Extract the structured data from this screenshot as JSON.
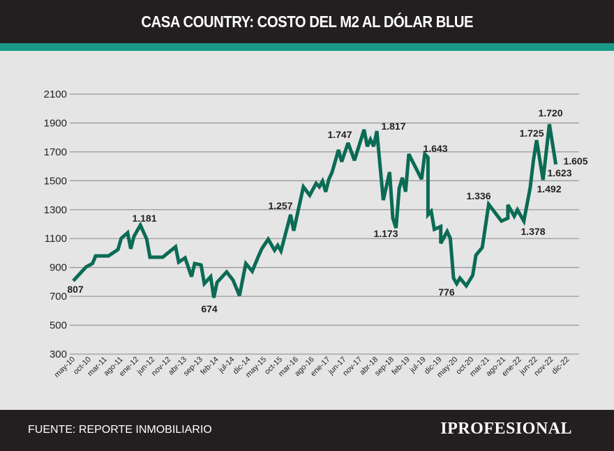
{
  "header": {
    "title": "CASA COUNTRY: COSTO DEL M2 AL DÓLAR BLUE"
  },
  "footer": {
    "source": "FUENTE: REPORTE INMOBILIARIO",
    "logo": "IPROFESIONAL"
  },
  "colors": {
    "line": "#0b6b55",
    "stripe": "#1a9a86",
    "bars": "#231f20",
    "background": "#e5e5e5"
  },
  "chart_data": {
    "type": "line",
    "title": "CASA COUNTRY: COSTO DEL M2 AL DÓLAR BLUE",
    "xlabel": "",
    "ylabel": "",
    "ylim": [
      300,
      2100
    ],
    "yticks": [
      "2100",
      "1900",
      "1700",
      "1500",
      "1300",
      "1100",
      "900",
      "700",
      "500",
      "300"
    ],
    "ytick_values": [
      2100,
      1900,
      1700,
      1500,
      1300,
      1100,
      900,
      700,
      500,
      300
    ],
    "xticks": [
      "may-10",
      "oct-10",
      "mar-11",
      "ago-11",
      "ene-12",
      "jun-12",
      "nov-12",
      "abr-13",
      "sep-13",
      "feb-14",
      "jul-14",
      "dic-14",
      "may-15",
      "oct-15",
      "mar-16",
      "ago-16",
      "ene-17",
      "jun-17",
      "nov-17",
      "abr-18",
      "sep-18",
      "feb-19",
      "jul-19",
      "dic-19",
      "may-20",
      "oct-20",
      "mar-21",
      "ago-21",
      "ene-22",
      "jun-22",
      "nov-22",
      "dic-22"
    ],
    "grid": true,
    "series": [
      {
        "points": [
          [
            "2010-05",
            807
          ],
          [
            "2010-09",
            903
          ],
          [
            "2010-11",
            927
          ],
          [
            "2010-12",
            980
          ],
          [
            "2011-04",
            980
          ],
          [
            "2011-07",
            1024
          ],
          [
            "2011-08",
            1101
          ],
          [
            "2011-10",
            1140
          ],
          [
            "2011-11",
            1029
          ],
          [
            "2011-12",
            1115
          ],
          [
            "2012-02",
            1193
          ],
          [
            "2012-04",
            1096
          ],
          [
            "2012-05",
            971
          ],
          [
            "2012-09",
            971
          ],
          [
            "2013-01",
            1043
          ],
          [
            "2013-02",
            937
          ],
          [
            "2013-04",
            966
          ],
          [
            "2013-06",
            836
          ],
          [
            "2013-07",
            927
          ],
          [
            "2013-09",
            917
          ],
          [
            "2013-10",
            788
          ],
          [
            "2013-12",
            836
          ],
          [
            "2014-01",
            691
          ],
          [
            "2014-02",
            797
          ],
          [
            "2014-05",
            869
          ],
          [
            "2014-07",
            812
          ],
          [
            "2014-09",
            705
          ],
          [
            "2014-11",
            927
          ],
          [
            "2015-01",
            874
          ],
          [
            "2015-03",
            980
          ],
          [
            "2015-04",
            1029
          ],
          [
            "2015-06",
            1096
          ],
          [
            "2015-08",
            1019
          ],
          [
            "2015-09",
            1053
          ],
          [
            "2015-10",
            1014
          ],
          [
            "2016-01",
            1265
          ],
          [
            "2016-02",
            1154
          ],
          [
            "2016-05",
            1458
          ],
          [
            "2016-07",
            1400
          ],
          [
            "2016-09",
            1482
          ],
          [
            "2016-10",
            1458
          ],
          [
            "2016-11",
            1497
          ],
          [
            "2016-12",
            1424
          ],
          [
            "2017-01",
            1511
          ],
          [
            "2017-02",
            1560
          ],
          [
            "2017-04",
            1714
          ],
          [
            "2017-05",
            1632
          ],
          [
            "2017-07",
            1762
          ],
          [
            "2017-09",
            1641
          ],
          [
            "2017-12",
            1854
          ],
          [
            "2018-01",
            1738
          ],
          [
            "2018-02",
            1786
          ],
          [
            "2018-03",
            1738
          ],
          [
            "2018-04",
            1844
          ],
          [
            "2018-06",
            1366
          ],
          [
            "2018-08",
            1560
          ],
          [
            "2018-09",
            1241
          ],
          [
            "2018-10",
            1173
          ],
          [
            "2018-11",
            1449
          ],
          [
            "2018-12",
            1521
          ],
          [
            "2019-01",
            1424
          ],
          [
            "2019-02",
            1685
          ],
          [
            "2019-06",
            1511
          ],
          [
            "2019-07",
            1685
          ],
          [
            "2019-08",
            1661
          ],
          [
            "2019-08",
            1265
          ],
          [
            "2019-09",
            1289
          ],
          [
            "2019-10",
            1164
          ],
          [
            "2019-12",
            1183
          ],
          [
            "2019-12",
            1067
          ],
          [
            "2020-02",
            1149
          ],
          [
            "2020-03",
            1101
          ],
          [
            "2020-04",
            826
          ],
          [
            "2020-05",
            788
          ],
          [
            "2020-06",
            826
          ],
          [
            "2020-08",
            773
          ],
          [
            "2020-10",
            846
          ],
          [
            "2020-11",
            985
          ],
          [
            "2021-01",
            1038
          ],
          [
            "2021-03",
            1337
          ],
          [
            "2021-07",
            1221
          ],
          [
            "2021-09",
            1241
          ],
          [
            "2021-09",
            1333
          ],
          [
            "2021-11",
            1255
          ],
          [
            "2021-12",
            1299
          ],
          [
            "2022-02",
            1221
          ],
          [
            "2022-04",
            1453
          ],
          [
            "2022-05",
            1641
          ],
          [
            "2022-06",
            1781
          ],
          [
            "2022-08",
            1506
          ],
          [
            "2022-10",
            1892
          ],
          [
            "2022-12",
            1613
          ]
        ]
      }
    ],
    "annotations": [
      "807",
      "1.181",
      "674",
      "1.257",
      "1.747",
      "1.817",
      "1.173",
      "1.643",
      "776",
      "1.336",
      "1.378",
      "1.725",
      "1.720",
      "1.605",
      "1.623",
      "1.492"
    ]
  }
}
